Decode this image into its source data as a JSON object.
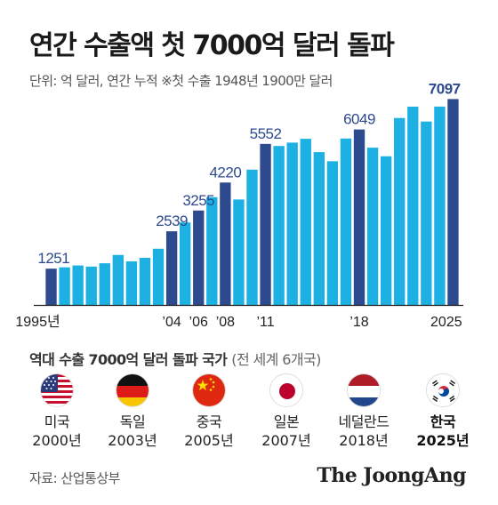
{
  "title": "연간 수출액 첫 7000억 달러 돌파",
  "subtitle": "단위: 억 달러, 연간 누적  ※첫 수출 1948년 1900만 달러",
  "colors": {
    "bar": "#1cb1e2",
    "highlight": "#2e4a8f",
    "label": "#2e4a8f",
    "axis": "#222222"
  },
  "chart_data": {
    "type": "bar",
    "title": "연간 수출액 첫 7000억 달러 돌파",
    "subtitle": "단위: 억 달러, 연간 누적  ※첫 수출 1948년 1900만 달러",
    "categories": [
      "1995",
      "1996",
      "1997",
      "1998",
      "1999",
      "2000",
      "2001",
      "2002",
      "2003",
      "2004",
      "2005",
      "2006",
      "2007",
      "2008",
      "2009",
      "2010",
      "2011",
      "2012",
      "2013",
      "2014",
      "2015",
      "2016",
      "2017",
      "2018",
      "2019",
      "2020",
      "2021",
      "2022",
      "2023",
      "2024",
      "2025"
    ],
    "values": [
      1251,
      1297,
      1362,
      1323,
      1437,
      1723,
      1504,
      1625,
      1938,
      2539,
      2844,
      3255,
      3715,
      4220,
      3635,
      4664,
      5552,
      5479,
      5596,
      5727,
      5268,
      4954,
      5737,
      6049,
      5422,
      5125,
      6444,
      6836,
      6322,
      6838,
      7097
    ],
    "highlighted": [
      "1995",
      "2004",
      "2006",
      "2008",
      "2011",
      "2018",
      "2025"
    ],
    "data_labels": [
      {
        "category": "1995",
        "text": "1251"
      },
      {
        "category": "2004",
        "text": "2539"
      },
      {
        "category": "2006",
        "text": "3255"
      },
      {
        "category": "2008",
        "text": "4220"
      },
      {
        "category": "2011",
        "text": "5552"
      },
      {
        "category": "2018",
        "text": "6049"
      },
      {
        "category": "2025",
        "text": "7097"
      }
    ],
    "tick_labels": [
      {
        "category": "1995",
        "text": "1995년"
      },
      {
        "category": "2004",
        "text": "’04"
      },
      {
        "category": "2006",
        "text": "’06"
      },
      {
        "category": "2008",
        "text": "’08"
      },
      {
        "category": "2011",
        "text": "’11"
      },
      {
        "category": "2018",
        "text": "’18"
      },
      {
        "category": "2025",
        "text": "2025"
      }
    ],
    "xlabel": "",
    "ylabel": "",
    "ylim": [
      0,
      7600
    ],
    "grid": false
  },
  "countries_section": {
    "title": "역대 수출 7000억 달러 돌파 국가",
    "note": "(전 세계 6개국)",
    "items": [
      {
        "name": "미국",
        "year": "2000년",
        "flag": "usa-flag-icon"
      },
      {
        "name": "독일",
        "year": "2003년",
        "flag": "germany-flag-icon"
      },
      {
        "name": "중국",
        "year": "2005년",
        "flag": "china-flag-icon"
      },
      {
        "name": "일본",
        "year": "2007년",
        "flag": "japan-flag-icon"
      },
      {
        "name": "네덜란드",
        "year": "2018년",
        "flag": "netherlands-flag-icon"
      },
      {
        "name": "한국",
        "year": "2025년",
        "flag": "korea-flag-icon"
      }
    ]
  },
  "source": "자료: 산업통상부",
  "logo": "The JoongAng"
}
